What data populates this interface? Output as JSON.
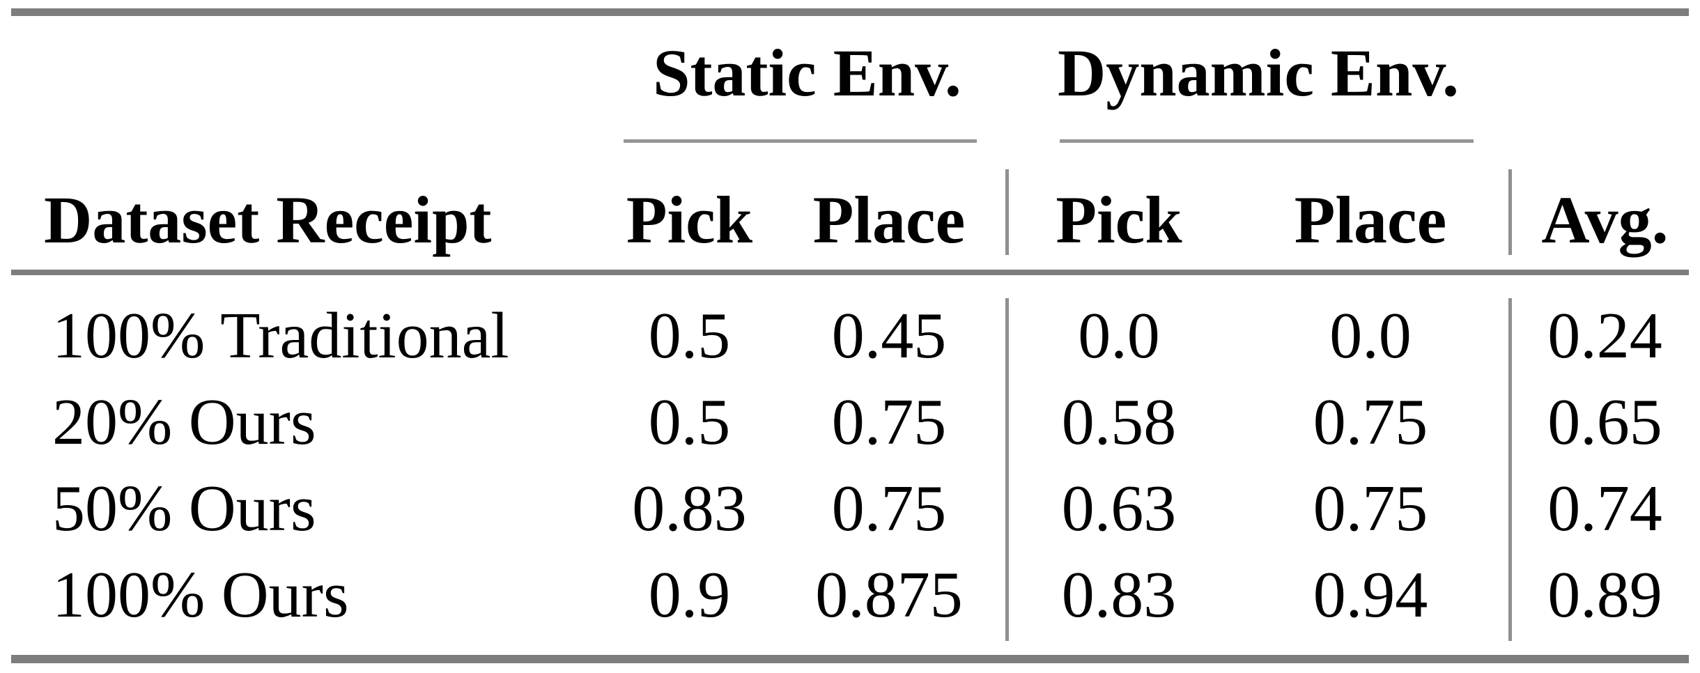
{
  "table": {
    "group_headers": [
      {
        "label": "Static Env.",
        "columns": [
          "Pick",
          "Place"
        ]
      },
      {
        "label": "Dynamic Env.",
        "columns": [
          "Pick",
          "Place"
        ]
      }
    ],
    "columns": [
      "Dataset Receipt",
      "Pick",
      "Place",
      "Pick",
      "Place",
      "Avg."
    ],
    "rows": [
      {
        "label": "100% Traditional",
        "values": [
          "0.5",
          "0.45",
          "0.0",
          "0.0",
          "0.24"
        ]
      },
      {
        "label": "20% Ours",
        "values": [
          "0.5",
          "0.75",
          "0.58",
          "0.75",
          "0.65"
        ]
      },
      {
        "label": "50% Ours",
        "values": [
          "0.83",
          "0.75",
          "0.63",
          "0.75",
          "0.74"
        ]
      },
      {
        "label": "100% Ours",
        "values": [
          "0.9",
          "0.875",
          "0.83",
          "0.94",
          "0.89"
        ]
      }
    ]
  },
  "chart_data": {
    "type": "table",
    "column_groups": [
      "",
      "Static Env.",
      "Static Env.",
      "Dynamic Env.",
      "Dynamic Env.",
      ""
    ],
    "columns": [
      "Dataset Receipt",
      "Pick",
      "Place",
      "Pick",
      "Place",
      "Avg."
    ],
    "rows": [
      [
        "100% Traditional",
        0.5,
        0.45,
        0.0,
        0.0,
        0.24
      ],
      [
        "20% Ours",
        0.5,
        0.75,
        0.58,
        0.75,
        0.65
      ],
      [
        "50% Ours",
        0.83,
        0.75,
        0.63,
        0.75,
        0.74
      ],
      [
        "100% Ours",
        0.9,
        0.875,
        0.83,
        0.94,
        0.89
      ]
    ]
  },
  "colors": {
    "background": "#ffffff",
    "text": "#000000",
    "thick_rule": "#7d7d7d",
    "thin_rule": "#959595",
    "vertical_rule": "#8f8f8f"
  }
}
